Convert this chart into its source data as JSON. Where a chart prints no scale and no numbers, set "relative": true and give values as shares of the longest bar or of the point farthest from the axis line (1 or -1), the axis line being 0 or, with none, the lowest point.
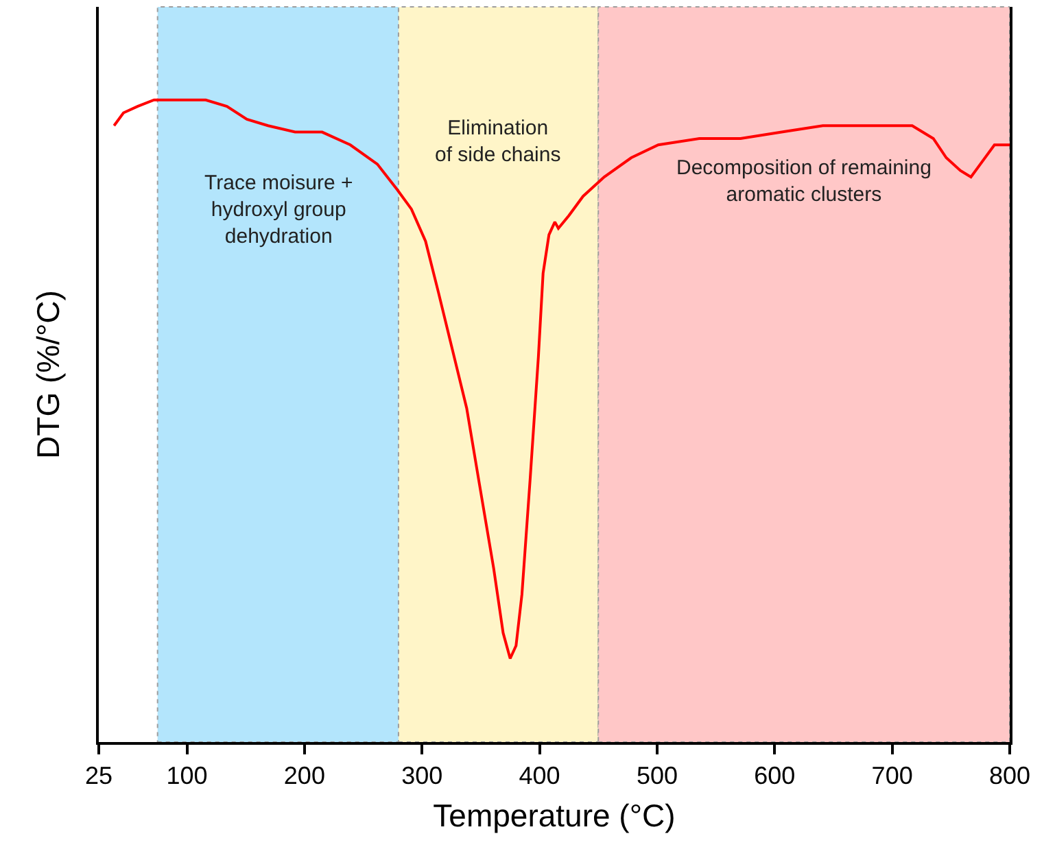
{
  "chart_data": {
    "type": "line",
    "relative": true,
    "xlabel": "Temperature (°C)",
    "ylabel": "DTG (%/°C)",
    "tick_labels": "x",
    "marker": "none",
    "line_style": "solid",
    "xlim": [
      25,
      800
    ],
    "xticks": [
      25,
      100,
      200,
      300,
      400,
      500,
      600,
      700,
      800
    ],
    "series": [
      {
        "color": "#ff0000",
        "x": [
          38,
          46,
          58,
          72,
          93,
          116,
          134,
          151,
          169,
          192,
          215,
          239,
          262,
          279,
          291,
          303,
          314,
          326,
          338,
          349,
          361,
          369,
          375,
          380,
          385,
          392,
          399,
          403,
          408,
          413,
          416,
          425,
          437,
          455,
          478,
          501,
          536,
          571,
          606,
          641,
          688,
          717,
          735,
          746,
          758,
          767,
          775,
          787,
          800
        ],
        "values": [
          0.96,
          0.98,
          0.99,
          1.0,
          1.0,
          1.0,
          0.99,
          0.97,
          0.96,
          0.95,
          0.95,
          0.93,
          0.9,
          0.86,
          0.83,
          0.78,
          0.7,
          0.61,
          0.52,
          0.4,
          0.27,
          0.17,
          0.13,
          0.15,
          0.23,
          0.41,
          0.6,
          0.73,
          0.79,
          0.81,
          0.8,
          0.82,
          0.85,
          0.88,
          0.91,
          0.93,
          0.94,
          0.94,
          0.95,
          0.96,
          0.96,
          0.96,
          0.94,
          0.91,
          0.89,
          0.88,
          0.9,
          0.93,
          0.93
        ]
      }
    ],
    "bands": [
      {
        "axis": "x",
        "from": 75,
        "to": 280,
        "label": "Trace moisure +\nhydroxyl group\ndehydration",
        "color": "#b3e5fc"
      },
      {
        "axis": "x",
        "from": 280,
        "to": 450,
        "label": "Elimination\nof side chains",
        "color": "#fff5c8"
      },
      {
        "axis": "x",
        "from": 450,
        "to": 800,
        "label": "Decomposition of remaining\naromatic clusters",
        "color": "#ffc7c7"
      }
    ]
  }
}
